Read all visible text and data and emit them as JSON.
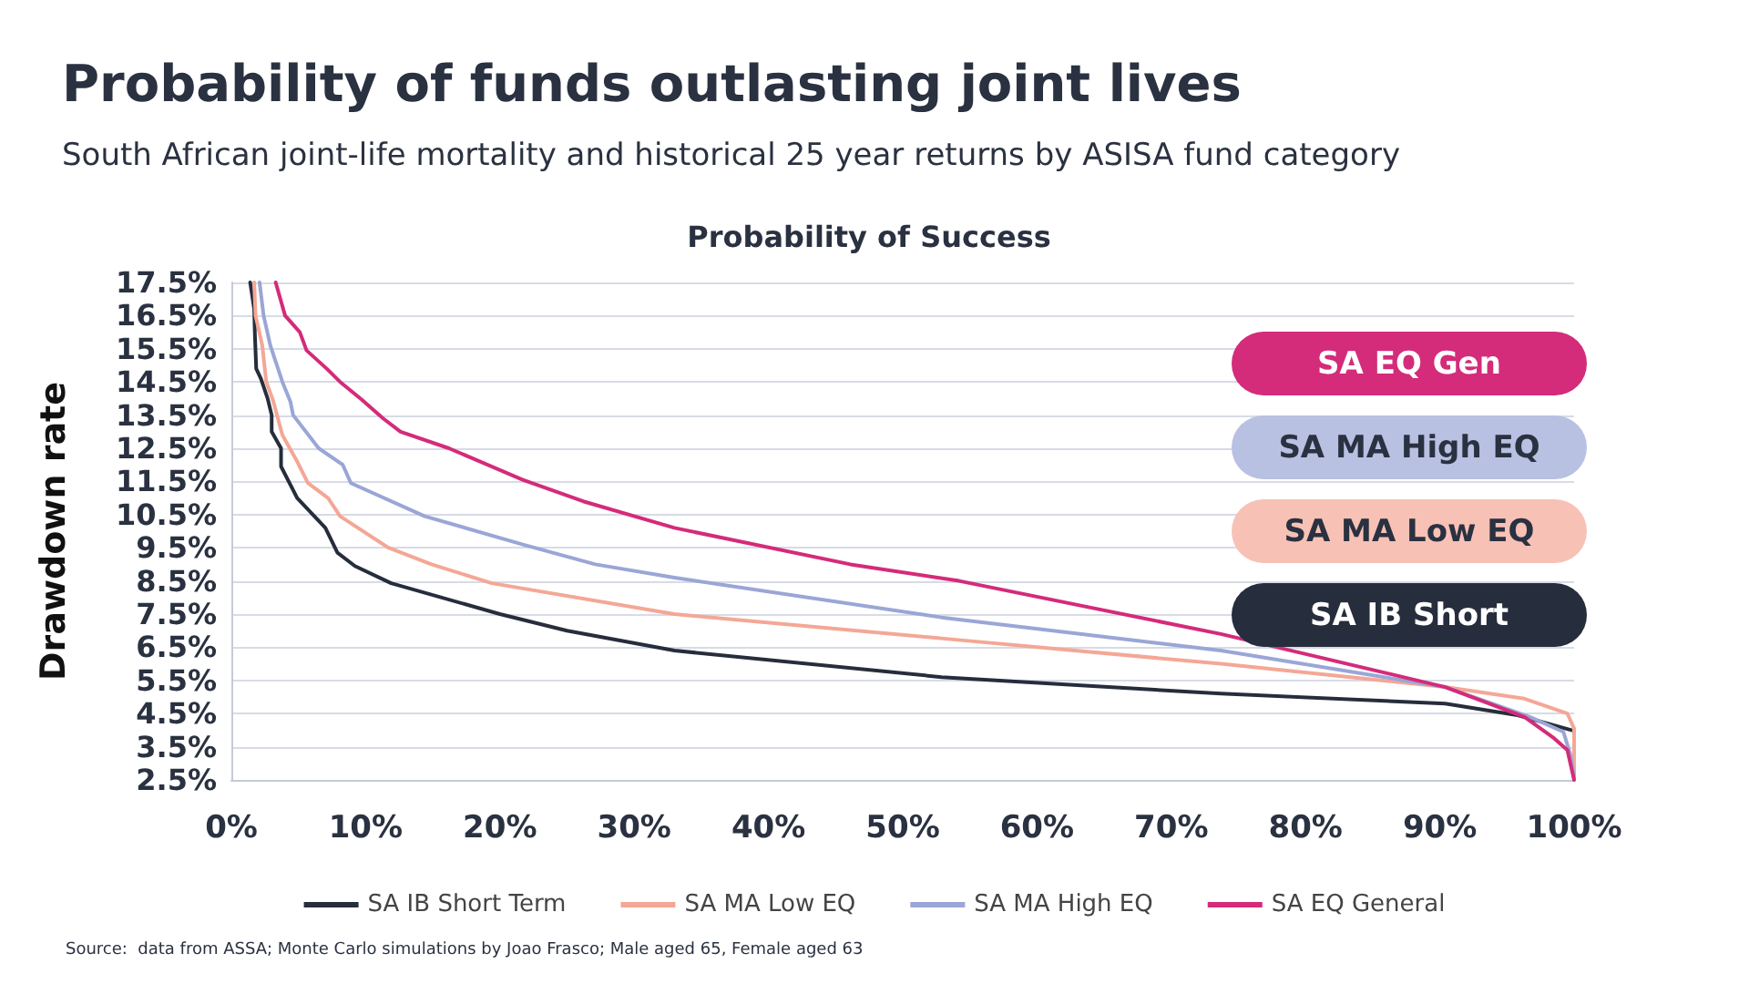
{
  "chart_data": {
    "type": "line",
    "title": "Probability of funds outlasting joint lives",
    "subtitle": "South African joint-life mortality and historical 25 year returns by ASISA fund category",
    "ylabel": "Drawdown rate",
    "annotations": [
      "Probability of Success",
      "SA EQ Gen",
      "SA MA High EQ",
      "SA MA Low EQ",
      "SA IB Short",
      "Source:  data from ASSA; Monte Carlo simulations by Joao Frasco; Male aged 65, Female aged 63"
    ],
    "xlim": [
      0,
      100
    ],
    "xticks": [
      {
        "value": 0,
        "label": "0%"
      },
      {
        "value": 10,
        "label": "10%"
      },
      {
        "value": 20,
        "label": "20%"
      },
      {
        "value": 30,
        "label": "30%"
      },
      {
        "value": 40,
        "label": "40%"
      },
      {
        "value": 50,
        "label": "50%"
      },
      {
        "value": 60,
        "label": "60%"
      },
      {
        "value": 70,
        "label": "70%"
      },
      {
        "value": 80,
        "label": "80%"
      },
      {
        "value": 90,
        "label": "90%"
      },
      {
        "value": 100,
        "label": "100%"
      }
    ],
    "ylim": [
      2.5,
      17.5
    ],
    "yticks": [
      {
        "value": 2.5,
        "label": "2.5%"
      },
      {
        "value": 3.5,
        "label": "3.5%"
      },
      {
        "value": 4.5,
        "label": "4.5%"
      },
      {
        "value": 5.5,
        "label": "5.5%"
      },
      {
        "value": 6.5,
        "label": "6.5%"
      },
      {
        "value": 7.5,
        "label": "7.5%"
      },
      {
        "value": 8.5,
        "label": "8.5%"
      },
      {
        "value": 9.5,
        "label": "9.5%"
      },
      {
        "value": 10.5,
        "label": "10.5%"
      },
      {
        "value": 11.5,
        "label": "11.5%"
      },
      {
        "value": 12.5,
        "label": "12.5%"
      },
      {
        "value": 13.5,
        "label": "13.5%"
      },
      {
        "value": 14.5,
        "label": "14.5%"
      },
      {
        "value": 15.5,
        "label": "15.5%"
      },
      {
        "value": 16.5,
        "label": "16.5%"
      },
      {
        "value": 17.5,
        "label": "17.5%"
      }
    ],
    "grid": "y",
    "legend": "bottom",
    "marker": "none",
    "line_style": "solid",
    "series": [
      {
        "name": "SA IB Short Term",
        "color": "#262d3c",
        "x": [
          1.4,
          1.7,
          1.75,
          1.85,
          2.2,
          2.7,
          3.0,
          3.0,
          3.7,
          3.7,
          4.9,
          7.0,
          7.9,
          9.2,
          11.9,
          20,
          25,
          33,
          52.9,
          73.7,
          90.4,
          95.8,
          99.8
        ],
        "values": [
          17.5,
          16.7,
          15.95,
          14.9,
          14.6,
          14.0,
          13.5,
          13.0,
          12.5,
          11.95,
          11.0,
          10.1,
          9.35,
          8.95,
          8.43,
          7.5,
          7.0,
          6.4,
          5.6,
          5.1,
          4.8,
          4.45,
          4.0
        ]
      },
      {
        "name": "SA MA Low EQ",
        "color": "#f4a796",
        "x": [
          1.7,
          1.8,
          2.3,
          2.6,
          3.1,
          3.8,
          4.9,
          5.7,
          7.2,
          8.1,
          11.7,
          14.9,
          19.4,
          33,
          54.7,
          73.7,
          90.4,
          96.3,
          99.5,
          100,
          100
        ],
        "values": [
          17.5,
          16.5,
          15.6,
          14.5,
          13.95,
          12.9,
          12.1,
          11.45,
          11.0,
          10.45,
          9.5,
          9.0,
          8.43,
          7.5,
          6.7,
          6.0,
          5.3,
          4.95,
          4.5,
          4.05,
          2.5
        ]
      },
      {
        "name": "SA MA High EQ",
        "color": "#9aa6d6",
        "x": [
          2.1,
          2.4,
          2.9,
          3.8,
          4.4,
          4.6,
          6.5,
          8.3,
          8.9,
          14.4,
          21.7,
          27.1,
          33,
          52.9,
          73.7,
          90.4,
          96.7,
          99.2,
          99.7,
          100
        ],
        "values": [
          17.5,
          16.5,
          15.6,
          14.5,
          13.9,
          13.5,
          12.5,
          12.0,
          11.45,
          10.45,
          9.6,
          9.0,
          8.6,
          7.4,
          6.4,
          5.3,
          4.4,
          3.95,
          3.3,
          2.6
        ]
      },
      {
        "name": "SA EQ General",
        "color": "#d42b7a",
        "x": [
          3.3,
          4.0,
          5.1,
          5.6,
          7.1,
          8.1,
          9.7,
          11.3,
          12.6,
          16.2,
          21.7,
          26.2,
          33,
          46.1,
          54.2,
          73.7,
          90.4,
          96.3,
          98.5,
          99.5,
          100
        ],
        "values": [
          17.5,
          16.5,
          16.0,
          15.45,
          14.9,
          14.5,
          13.97,
          13.4,
          13.0,
          12.5,
          11.55,
          10.9,
          10.1,
          9.0,
          8.5,
          6.9,
          5.3,
          4.4,
          3.76,
          3.4,
          2.5
        ]
      }
    ]
  }
}
